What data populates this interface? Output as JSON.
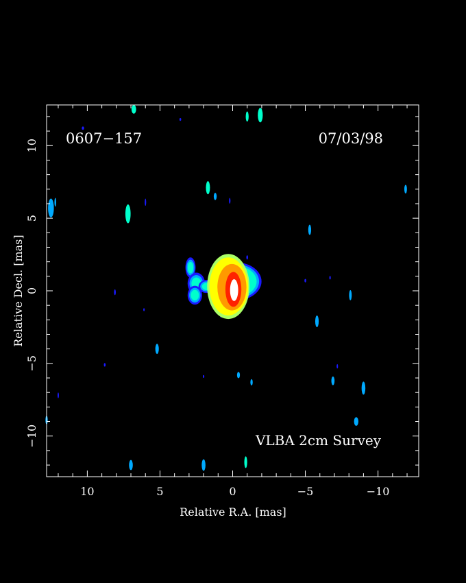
{
  "chart_data": {
    "type": "heatmap",
    "title_left": "0607−157",
    "title_right": "07/03/98",
    "annotation": "VLBA 2cm Survey",
    "xlabel": "Relative R.A. [mas]",
    "ylabel": "Relative Decl. [mas]",
    "xlim": [
      12.8,
      -12.8
    ],
    "ylim": [
      -12.8,
      12.8
    ],
    "x_ticks": [
      {
        "value": 10,
        "label": "10"
      },
      {
        "value": 5,
        "label": "5"
      },
      {
        "value": 0,
        "label": "0"
      },
      {
        "value": -5,
        "label": "−5"
      },
      {
        "value": -10,
        "label": "−10"
      }
    ],
    "y_ticks": [
      {
        "value": 10,
        "label": "10"
      },
      {
        "value": 5,
        "label": "5"
      },
      {
        "value": 0,
        "label": "0"
      },
      {
        "value": -5,
        "label": "−5"
      },
      {
        "value": -10,
        "label": "−10"
      }
    ],
    "background_color": "#000000",
    "axis_color": "#ffffff",
    "colormap": [
      "#1a1aff",
      "#00aaff",
      "#00ffcc",
      "#aaff66",
      "#ffff00",
      "#ff9900",
      "#ff2200",
      "#ffffff"
    ],
    "core": {
      "x": 0.0,
      "y": 0.1,
      "components": [
        {
          "dx": -0.25,
          "dy": 0.55,
          "w": 1.4,
          "h": 1.05,
          "level": 2
        },
        {
          "dx": 0.3,
          "dy": 0.2,
          "w": 1.3,
          "h": 2.0,
          "level": 4
        },
        {
          "dx": 0.05,
          "dy": 0.15,
          "w": 1.0,
          "h": 1.6,
          "level": 5
        },
        {
          "dx": -0.05,
          "dy": 0.0,
          "w": 0.55,
          "h": 1.2,
          "level": 6
        },
        {
          "dx": -0.1,
          "dy": -0.05,
          "w": 0.28,
          "h": 0.75,
          "level": 7
        }
      ]
    },
    "jet_components": [
      {
        "x": 2.9,
        "y": 1.6,
        "w": 0.35,
        "h": 0.7,
        "level": 2
      },
      {
        "x": 2.5,
        "y": 0.5,
        "w": 0.6,
        "h": 0.75,
        "level": 2
      },
      {
        "x": 2.6,
        "y": -0.3,
        "w": 0.5,
        "h": 0.65,
        "level": 2
      },
      {
        "x": 1.8,
        "y": 0.3,
        "w": 0.55,
        "h": 0.45,
        "level": 2
      },
      {
        "x": 1.1,
        "y": 0.4,
        "w": 0.6,
        "h": 0.7,
        "level": 3
      },
      {
        "x": -1.3,
        "y": 0.7,
        "w": 0.3,
        "h": 0.65,
        "level": 2
      },
      {
        "x": 0.8,
        "y": -1.6,
        "w": 0.08,
        "h": 0.25,
        "level": 1
      }
    ],
    "spots": [
      {
        "x": 6.8,
        "y": 12.5,
        "w": 0.16,
        "h": 0.3,
        "level": 2
      },
      {
        "x": 10.3,
        "y": 11.2,
        "w": 0.08,
        "h": 0.12,
        "level": 0
      },
      {
        "x": 3.6,
        "y": 11.8,
        "w": 0.06,
        "h": 0.1,
        "level": 0
      },
      {
        "x": -1.0,
        "y": 12.0,
        "w": 0.1,
        "h": 0.35,
        "level": 2
      },
      {
        "x": -1.9,
        "y": 12.1,
        "w": 0.17,
        "h": 0.5,
        "level": 2
      },
      {
        "x": 12.5,
        "y": 5.7,
        "w": 0.2,
        "h": 0.65,
        "level": 1
      },
      {
        "x": 12.2,
        "y": 6.1,
        "w": 0.06,
        "h": 0.3,
        "level": 1
      },
      {
        "x": 7.2,
        "y": 5.3,
        "w": 0.18,
        "h": 0.65,
        "level": 2
      },
      {
        "x": 6.0,
        "y": 6.1,
        "w": 0.05,
        "h": 0.25,
        "level": 0
      },
      {
        "x": 1.7,
        "y": 7.1,
        "w": 0.14,
        "h": 0.45,
        "level": 2
      },
      {
        "x": 1.2,
        "y": 6.5,
        "w": 0.1,
        "h": 0.25,
        "level": 1
      },
      {
        "x": 0.2,
        "y": 6.2,
        "w": 0.05,
        "h": 0.2,
        "level": 0
      },
      {
        "x": -11.9,
        "y": 7.0,
        "w": 0.09,
        "h": 0.3,
        "level": 1
      },
      {
        "x": -5.3,
        "y": 4.2,
        "w": 0.1,
        "h": 0.35,
        "level": 1
      },
      {
        "x": -1.0,
        "y": 2.3,
        "w": 0.06,
        "h": 0.15,
        "level": 0
      },
      {
        "x": -5.0,
        "y": 0.7,
        "w": 0.06,
        "h": 0.12,
        "level": 0
      },
      {
        "x": -6.7,
        "y": 0.9,
        "w": 0.05,
        "h": 0.12,
        "level": 0
      },
      {
        "x": 8.1,
        "y": -0.1,
        "w": 0.06,
        "h": 0.2,
        "level": 0
      },
      {
        "x": 6.1,
        "y": -1.3,
        "w": 0.05,
        "h": 0.1,
        "level": 0
      },
      {
        "x": -8.1,
        "y": -0.3,
        "w": 0.09,
        "h": 0.35,
        "level": 1
      },
      {
        "x": -5.8,
        "y": -2.1,
        "w": 0.12,
        "h": 0.4,
        "level": 1
      },
      {
        "x": 5.2,
        "y": -4.0,
        "w": 0.12,
        "h": 0.35,
        "level": 1
      },
      {
        "x": 8.8,
        "y": -5.1,
        "w": 0.06,
        "h": 0.12,
        "level": 0
      },
      {
        "x": 2.0,
        "y": -5.9,
        "w": 0.05,
        "h": 0.1,
        "level": 0
      },
      {
        "x": -0.4,
        "y": -5.8,
        "w": 0.1,
        "h": 0.22,
        "level": 1
      },
      {
        "x": -1.3,
        "y": -6.3,
        "w": 0.08,
        "h": 0.22,
        "level": 1
      },
      {
        "x": -7.2,
        "y": -5.2,
        "w": 0.05,
        "h": 0.15,
        "level": 0
      },
      {
        "x": -6.9,
        "y": -6.2,
        "w": 0.11,
        "h": 0.3,
        "level": 1
      },
      {
        "x": -9.0,
        "y": -6.7,
        "w": 0.13,
        "h": 0.45,
        "level": 1
      },
      {
        "x": 12.0,
        "y": -7.2,
        "w": 0.04,
        "h": 0.2,
        "level": 0
      },
      {
        "x": 12.8,
        "y": -8.9,
        "w": 0.08,
        "h": 0.3,
        "level": 1
      },
      {
        "x": -8.5,
        "y": -9.0,
        "w": 0.15,
        "h": 0.3,
        "level": 1
      },
      {
        "x": 7.0,
        "y": -12.0,
        "w": 0.13,
        "h": 0.35,
        "level": 1
      },
      {
        "x": 2.0,
        "y": -12.0,
        "w": 0.13,
        "h": 0.4,
        "level": 1
      },
      {
        "x": -0.9,
        "y": -11.8,
        "w": 0.1,
        "h": 0.4,
        "level": 2
      }
    ]
  }
}
